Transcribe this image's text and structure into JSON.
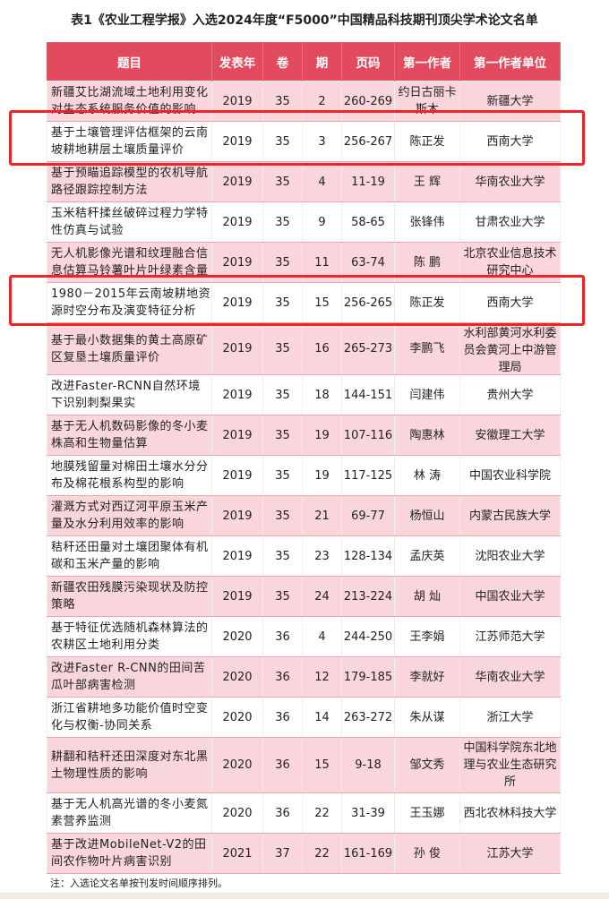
{
  "title": "表1《农业工程学报》入选2024年度“F5000”中国精品科技期刊顶尖学术论文名单",
  "headers": [
    "题目",
    "发表年",
    "卷",
    "期",
    "页码",
    "第一作者",
    "第一作者单位"
  ],
  "rows": [
    [
      "新疆艾比湖流域土地利用变化对生态系统服务价值的影响",
      "2019",
      "35",
      "2",
      "260-269",
      "约日古丽卡斯木",
      "新疆大学"
    ],
    [
      "基于土壤管理评估框架的云南坡耕地耕层土壤质量评价",
      "2019",
      "35",
      "3",
      "256-267",
      "陈正发",
      "西南大学"
    ],
    [
      "基于预瞄追踪模型的农机导航路径跟踪控制方法",
      "2019",
      "35",
      "4",
      "11-19",
      "王 辉",
      "华南农业大学"
    ],
    [
      "玉米秸秆揉丝破碎过程力学特性仿真与试验",
      "2019",
      "35",
      "9",
      "58-65",
      "张锋伟",
      "甘肃农业大学"
    ],
    [
      "无人机影像光谱和纹理融合信息估算马铃薯叶片叶绿素含量",
      "2019",
      "35",
      "11",
      "63-74",
      "陈 鹏",
      "北京农业信息技术研究中心"
    ],
    [
      "1980－2015年云南坡耕地资源时空分布及演变特征分析",
      "2019",
      "35",
      "15",
      "256-265",
      "陈正发",
      "西南大学"
    ],
    [
      "基于最小数据集的黄土高原矿区复垦土壤质量评价",
      "2019",
      "35",
      "16",
      "265-273",
      "李鹏飞",
      "水利部黄河水利委员会黄河上中游管理局"
    ],
    [
      "改进Faster-RCNN自然环境下识别刺梨果实",
      "2019",
      "35",
      "18",
      "144-151",
      "闫建伟",
      "贵州大学"
    ],
    [
      "基于无人机数码影像的冬小麦株高和生物量估算",
      "2019",
      "35",
      "19",
      "107-116",
      "陶惠林",
      "安徽理工大学"
    ],
    [
      "地膜残留量对棉田土壤水分分布及棉花根系构型的影响",
      "2019",
      "35",
      "19",
      "117-125",
      "林 涛",
      "中国农业科学院"
    ],
    [
      "灌溉方式对西辽河平原玉米产量及水分利用效率的影响",
      "2019",
      "35",
      "21",
      "69-77",
      "杨恒山",
      "内蒙古民族大学"
    ],
    [
      "秸秆还田量对土壤团聚体有机碳和玉米产量的影响",
      "2019",
      "35",
      "23",
      "128-134",
      "孟庆英",
      "沈阳农业大学"
    ],
    [
      "新疆农田残膜污染现状及防控策略",
      "2019",
      "35",
      "24",
      "213-224",
      "胡 灿",
      "中国农业大学"
    ],
    [
      "基于特征优选随机森林算法的农耕区土地利用分类",
      "2020",
      "36",
      "4",
      "244-250",
      "王李娟",
      "江苏师范大学"
    ],
    [
      "改进Faster R-CNN的田间苦瓜叶部病害检测",
      "2020",
      "36",
      "12",
      "179-185",
      "李就好",
      "华南农业大学"
    ],
    [
      "浙江省耕地多功能价值时空变化与权衡-协同关系",
      "2020",
      "36",
      "14",
      "263-272",
      "朱从谋",
      "浙江大学"
    ],
    [
      "耕翻和秸秆还田深度对东北黑土物理性质的影响",
      "2020",
      "36",
      "15",
      "9-18",
      "邹文秀",
      "中国科学院东北地理与农业生态研究所"
    ],
    [
      "基于无人机高光谱的冬小麦氮素营养监测",
      "2020",
      "36",
      "22",
      "31-39",
      "王玉娜",
      "西北农林科技大学"
    ],
    [
      "基于改进MobileNet-V2的田间农作物叶片病害识别",
      "2021",
      "37",
      "22",
      "161-169",
      "孙 俊",
      "江苏大学"
    ]
  ],
  "highlighted_rows": [
    2,
    6
  ],
  "note": "注：入选论文名单按刊发时间顺序排列。",
  "colors": {
    "header": "#e24b5d",
    "pink_row": "#f9d6dc",
    "highlight": "#f02424"
  }
}
